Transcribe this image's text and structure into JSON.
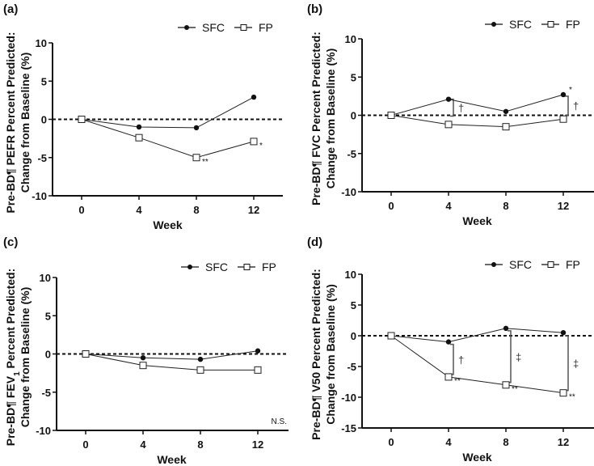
{
  "chart_data": [
    {
      "type": "line",
      "panel": "(a)",
      "ylabel_line1": "Pre-BD¶ PEFR Percent Predicted:",
      "ylabel_line2": "Change from Baseline (%)",
      "xlabel": "Week",
      "x": [
        0,
        4,
        8,
        12
      ],
      "xticks": [
        "0",
        "4",
        "8",
        "12"
      ],
      "ylim": [
        -10,
        10
      ],
      "yticks": [
        "10",
        "5",
        "0",
        "-5",
        "-10"
      ],
      "reference_line": 0,
      "legend": [
        "SFC",
        "FP"
      ],
      "legend_position": "top-right",
      "series": [
        {
          "name": "SFC",
          "marker": "filled-circle",
          "values": [
            0,
            -1.0,
            -1.1,
            2.9
          ]
        },
        {
          "name": "FP",
          "marker": "open-square",
          "values": [
            0,
            -2.4,
            -5.0,
            -2.9
          ]
        }
      ],
      "annotations": [
        {
          "x": 8,
          "series": "FP",
          "text": "**"
        },
        {
          "x": 12,
          "series": "FP",
          "text": "*"
        }
      ],
      "brackets": []
    },
    {
      "type": "line",
      "panel": "(b)",
      "ylabel_line1": "Pre-BD¶ FVC Percent Predicted:",
      "ylabel_line2": "Change from Baseline (%)",
      "xlabel": "Week",
      "x": [
        0,
        4,
        8,
        12
      ],
      "xticks": [
        "0",
        "4",
        "8",
        "12"
      ],
      "ylim": [
        -10,
        10
      ],
      "yticks": [
        "10",
        "5",
        "0",
        "-5",
        "-10"
      ],
      "reference_line": 0,
      "legend": [
        "SFC",
        "FP"
      ],
      "legend_position": "top-right",
      "series": [
        {
          "name": "SFC",
          "marker": "filled-circle",
          "values": [
            0,
            2.1,
            0.5,
            2.7
          ]
        },
        {
          "name": "FP",
          "marker": "open-square",
          "values": [
            0,
            -1.2,
            -1.5,
            -0.5
          ]
        }
      ],
      "annotations": [
        {
          "x": 12,
          "series": "SFC",
          "text": "*"
        }
      ],
      "brackets": [
        {
          "x": 4,
          "from": 2.1,
          "to": -0.1,
          "symbol": "†"
        },
        {
          "x": 12,
          "from": 2.5,
          "to": 0,
          "symbol": "†"
        }
      ]
    },
    {
      "type": "line",
      "panel": "(c)",
      "ylabel_line1": "Pre-BD¶ FEV1 Percent Predicted:",
      "ylabel_line2": "Change from Baseline (%)",
      "xlabel": "Week",
      "x": [
        0,
        4,
        8,
        12
      ],
      "xticks": [
        "0",
        "4",
        "8",
        "12"
      ],
      "ylim": [
        -10,
        10
      ],
      "yticks": [
        "10",
        "5",
        "0",
        "-5",
        "-10"
      ],
      "reference_line": 0,
      "legend": [
        "SFC",
        "FP"
      ],
      "legend_position": "top-right",
      "series": [
        {
          "name": "SFC",
          "marker": "filled-circle",
          "values": [
            0,
            -0.5,
            -0.7,
            0.4
          ]
        },
        {
          "name": "FP",
          "marker": "open-square",
          "values": [
            0,
            -1.5,
            -2.1,
            -2.1
          ]
        }
      ],
      "annotations": [],
      "brackets": [],
      "note": "N.S."
    },
    {
      "type": "line",
      "panel": "(d)",
      "ylabel_line1": "Pre-BD¶ V50 Percent Predicted:",
      "ylabel_line2": "Change from Baseline (%)",
      "xlabel": "Week",
      "x": [
        0,
        4,
        8,
        12
      ],
      "xticks": [
        "0",
        "4",
        "8",
        "12"
      ],
      "ylim": [
        -15,
        10
      ],
      "yticks": [
        "10",
        "5",
        "0",
        "-5",
        "-10",
        "-15"
      ],
      "reference_line": 0,
      "legend": [
        "SFC",
        "FP"
      ],
      "legend_position": "top-right",
      "series": [
        {
          "name": "SFC",
          "marker": "filled-circle",
          "values": [
            0,
            -1.0,
            1.2,
            0.5
          ]
        },
        {
          "name": "FP",
          "marker": "open-square",
          "values": [
            0,
            -6.7,
            -8.0,
            -9.3
          ]
        }
      ],
      "annotations": [
        {
          "x": 4,
          "series": "FP",
          "text": "**"
        },
        {
          "x": 8,
          "series": "FP",
          "text": "**"
        },
        {
          "x": 12,
          "series": "FP",
          "text": "**"
        }
      ],
      "brackets": [
        {
          "x": 4,
          "from": -1.4,
          "to": -6.3,
          "symbol": "†"
        },
        {
          "x": 8,
          "from": 0.8,
          "to": -7.6,
          "symbol": "‡"
        },
        {
          "x": 12,
          "from": 0.0,
          "to": -8.9,
          "symbol": "‡"
        }
      ]
    }
  ]
}
